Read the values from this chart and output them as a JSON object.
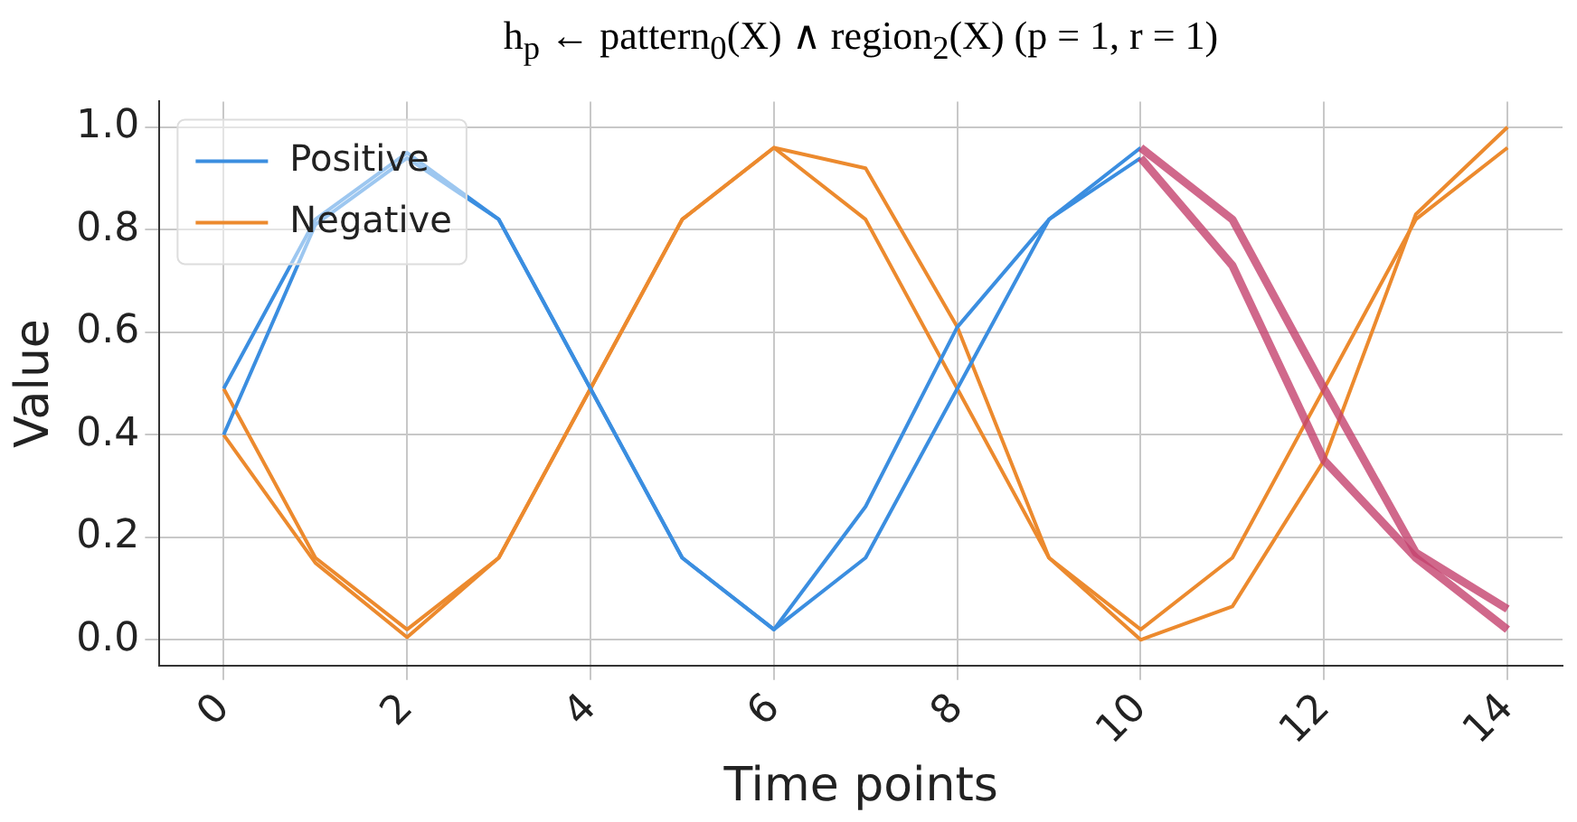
{
  "chart_data": {
    "type": "line",
    "title": "h$_{p}$ ← pattern$_{0}$(X) ∧ region$_{2}$(X) (p = 1, r = 1)",
    "xlabel": "Time points",
    "ylabel": "Value",
    "x": [
      0,
      1,
      2,
      3,
      4,
      5,
      6,
      7,
      8,
      9,
      10,
      11,
      12,
      13,
      14
    ],
    "series": [
      {
        "name": "Positive",
        "color": "#3b8ee0",
        "values": [
          0.49,
          0.82,
          0.95,
          0.82,
          0.49,
          0.16,
          0.02,
          0.26,
          0.61,
          0.82,
          0.96,
          null,
          null,
          null,
          null
        ]
      },
      {
        "color": "#3b8ee0",
        "values": [
          0.4,
          0.81,
          0.94,
          0.82,
          0.49,
          0.16,
          0.02,
          0.16,
          0.49,
          0.82,
          0.94,
          null,
          null,
          null,
          null
        ]
      },
      {
        "name": "Negative",
        "color": "#ec8a2e",
        "values": [
          0.49,
          0.16,
          0.02,
          0.16,
          0.49,
          0.82,
          0.96,
          0.92,
          0.61,
          0.16,
          0.02,
          0.16,
          0.49,
          0.82,
          0.96
        ]
      },
      {
        "color": "#ec8a2e",
        "values": [
          0.4,
          0.15,
          0.005,
          0.16,
          0.49,
          0.82,
          0.96,
          0.82,
          0.49,
          0.16,
          0.0,
          0.065,
          0.35,
          0.83,
          1.0
        ]
      },
      {
        "color": "#c4426e",
        "x": [
          10,
          11,
          12,
          13,
          14
        ],
        "values": [
          0.96,
          0.82,
          0.49,
          0.17,
          0.06
        ]
      },
      {
        "color": "#c4426e",
        "x": [
          10,
          11,
          12,
          13,
          14
        ],
        "values": [
          0.94,
          0.73,
          0.35,
          0.16,
          0.02
        ]
      }
    ],
    "xlim": [
      -0.7,
      14.6
    ],
    "xticks": [
      0,
      2,
      4,
      6,
      8,
      10,
      12,
      14
    ],
    "ylim": [
      -0.05,
      1.05
    ],
    "yticks": [
      {
        "value": 0,
        "label": "0.0"
      },
      {
        "value": 0.2,
        "label": "0.2"
      },
      {
        "value": 0.4,
        "label": "0.4"
      },
      {
        "value": 0.6,
        "label": "0.6"
      },
      {
        "value": 0.8,
        "label": "0.8"
      },
      {
        "value": 1,
        "label": "1.0"
      }
    ],
    "grid": true,
    "legend": "top left",
    "marker": "none",
    "line_style": "solid"
  }
}
